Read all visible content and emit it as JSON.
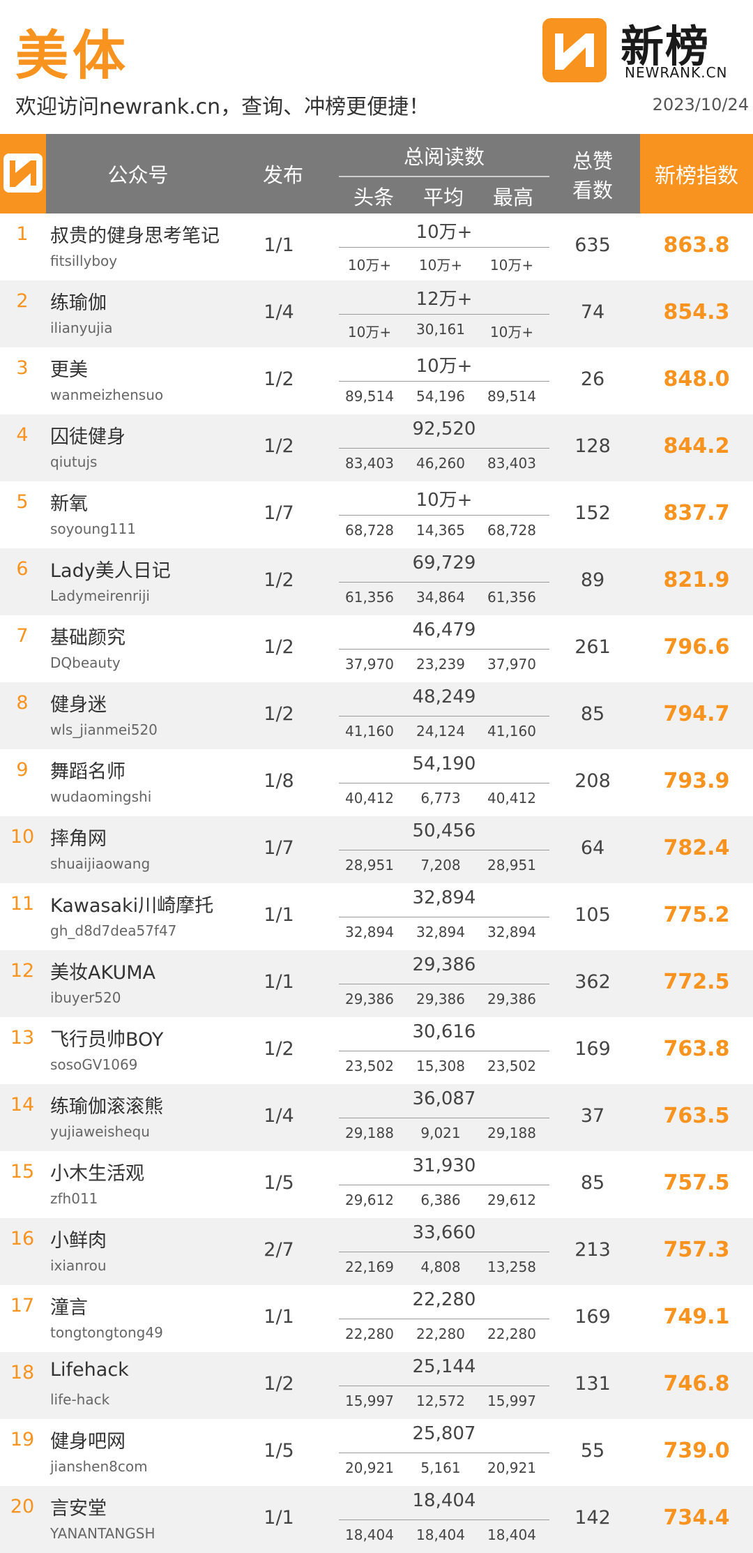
{
  "header": {
    "category": "美体",
    "subtitle": "欢迎访问newrank.cn，查询、冲榜更便捷！",
    "date": "2023/10/24",
    "brand_name": "新榜",
    "brand_url": "NEWRANK.CN",
    "logo_icon": "newrank-logo-icon",
    "accent_color": "#F7931E"
  },
  "table_header": {
    "account": "公众号",
    "publish": "发布",
    "total_reads": "总阅读数",
    "headline": "头条",
    "average": "平均",
    "max": "最高",
    "likes_line1": "总赞",
    "likes_line2": "看数",
    "index": "新榜指数"
  },
  "rows": [
    {
      "rank": "1",
      "name": "叔贵的健身思考笔记",
      "account": "fitsillyboy",
      "publish": "1/1",
      "total": "10万+",
      "headline": "10万+",
      "average": "10万+",
      "max": "10万+",
      "likes": "635",
      "score": "863.8"
    },
    {
      "rank": "2",
      "name": "练瑜伽",
      "account": "ilianyujia",
      "publish": "1/4",
      "total": "12万+",
      "headline": "10万+",
      "average": "30,161",
      "max": "10万+",
      "likes": "74",
      "score": "854.3"
    },
    {
      "rank": "3",
      "name": "更美",
      "account": "wanmeizhensuo",
      "publish": "1/2",
      "total": "10万+",
      "headline": "89,514",
      "average": "54,196",
      "max": "89,514",
      "likes": "26",
      "score": "848.0"
    },
    {
      "rank": "4",
      "name": "囚徒健身",
      "account": "qiutujs",
      "publish": "1/2",
      "total": "92,520",
      "headline": "83,403",
      "average": "46,260",
      "max": "83,403",
      "likes": "128",
      "score": "844.2"
    },
    {
      "rank": "5",
      "name": "新氧",
      "account": "soyoung111",
      "publish": "1/7",
      "total": "10万+",
      "headline": "68,728",
      "average": "14,365",
      "max": "68,728",
      "likes": "152",
      "score": "837.7"
    },
    {
      "rank": "6",
      "name": "Lady美人日记",
      "account": "Ladymeirenriji",
      "publish": "1/2",
      "total": "69,729",
      "headline": "61,356",
      "average": "34,864",
      "max": "61,356",
      "likes": "89",
      "score": "821.9"
    },
    {
      "rank": "7",
      "name": "基础颜究",
      "account": "DQbeauty",
      "publish": "1/2",
      "total": "46,479",
      "headline": "37,970",
      "average": "23,239",
      "max": "37,970",
      "likes": "261",
      "score": "796.6"
    },
    {
      "rank": "8",
      "name": "健身迷",
      "account": "wls_jianmei520",
      "publish": "1/2",
      "total": "48,249",
      "headline": "41,160",
      "average": "24,124",
      "max": "41,160",
      "likes": "85",
      "score": "794.7"
    },
    {
      "rank": "9",
      "name": "舞蹈名师",
      "account": "wudaomingshi",
      "publish": "1/8",
      "total": "54,190",
      "headline": "40,412",
      "average": "6,773",
      "max": "40,412",
      "likes": "208",
      "score": "793.9"
    },
    {
      "rank": "10",
      "name": "摔角网",
      "account": "shuaijiaowang",
      "publish": "1/7",
      "total": "50,456",
      "headline": "28,951",
      "average": "7,208",
      "max": "28,951",
      "likes": "64",
      "score": "782.4"
    },
    {
      "rank": "11",
      "name": "Kawasaki川崎摩托",
      "account": "gh_d8d7dea57f47",
      "publish": "1/1",
      "total": "32,894",
      "headline": "32,894",
      "average": "32,894",
      "max": "32,894",
      "likes": "105",
      "score": "775.2"
    },
    {
      "rank": "12",
      "name": "美妆AKUMA",
      "account": "ibuyer520",
      "publish": "1/1",
      "total": "29,386",
      "headline": "29,386",
      "average": "29,386",
      "max": "29,386",
      "likes": "362",
      "score": "772.5"
    },
    {
      "rank": "13",
      "name": "飞行员帅BOY",
      "account": "sosoGV1069",
      "publish": "1/2",
      "total": "30,616",
      "headline": "23,502",
      "average": "15,308",
      "max": "23,502",
      "likes": "169",
      "score": "763.8"
    },
    {
      "rank": "14",
      "name": "练瑜伽滚滚熊",
      "account": "yujiaweishequ",
      "publish": "1/4",
      "total": "36,087",
      "headline": "29,188",
      "average": "9,021",
      "max": "29,188",
      "likes": "37",
      "score": "763.5"
    },
    {
      "rank": "15",
      "name": "小木生活观",
      "account": "zfh011",
      "publish": "1/5",
      "total": "31,930",
      "headline": "29,612",
      "average": "6,386",
      "max": "29,612",
      "likes": "85",
      "score": "757.5"
    },
    {
      "rank": "16",
      "name": "小鲜肉",
      "account": "ixianrou",
      "publish": "2/7",
      "total": "33,660",
      "headline": "22,169",
      "average": "4,808",
      "max": "13,258",
      "likes": "213",
      "score": "757.3"
    },
    {
      "rank": "17",
      "name": "潼言",
      "account": "tongtongtong49",
      "publish": "1/1",
      "total": "22,280",
      "headline": "22,280",
      "average": "22,280",
      "max": "22,280",
      "likes": "169",
      "score": "749.1"
    },
    {
      "rank": "18",
      "name": "Lifehack",
      "account": "life-hack",
      "publish": "1/2",
      "total": "25,144",
      "headline": "15,997",
      "average": "12,572",
      "max": "15,997",
      "likes": "131",
      "score": "746.8"
    },
    {
      "rank": "19",
      "name": "健身吧网",
      "account": "jianshen8com",
      "publish": "1/5",
      "total": "25,807",
      "headline": "20,921",
      "average": "5,161",
      "max": "20,921",
      "likes": "55",
      "score": "739.0"
    },
    {
      "rank": "20",
      "name": "言安堂",
      "account": "YANANTANGSH",
      "publish": "1/1",
      "total": "18,404",
      "headline": "18,404",
      "average": "18,404",
      "max": "18,404",
      "likes": "142",
      "score": "734.4"
    }
  ]
}
